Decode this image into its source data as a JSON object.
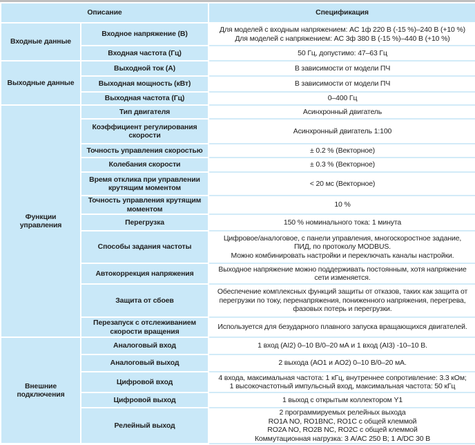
{
  "header": {
    "description": "Описание",
    "specification": "Спецификация"
  },
  "groups": [
    {
      "label": "Входные данные",
      "rows": [
        {
          "param": "Входное напряжение (В)",
          "value": [
            "Для моделей с входным напряжением: AC 1ф 220 В (-15 %)–240 В (+10 %)",
            "Для моделей с напряжением:  AC 3ф 380 В (-15 %)–440 В (+10 %)"
          ]
        },
        {
          "param": "Входная частота (Гц)",
          "value": [
            "50 Гц, допустимо: 47–63 Гц"
          ]
        }
      ]
    },
    {
      "label": "Выходные данные",
      "rows": [
        {
          "param": "Выходной ток (А)",
          "value": [
            "В зависимости от модели ПЧ"
          ]
        },
        {
          "param": "Выходная мощность (кВт)",
          "value": [
            "В зависимости от модели ПЧ"
          ]
        },
        {
          "param": "Выходная частота (Гц)",
          "value": [
            "0–400 Гц"
          ]
        }
      ]
    },
    {
      "label": "Функции управления",
      "rows": [
        {
          "param": "Тип двигателя",
          "value": [
            "Асинхронный двигатель"
          ]
        },
        {
          "param": "Коэффициент регулирования скорости",
          "value": [
            "Асинхронный двигатель 1:100"
          ]
        },
        {
          "param": "Точность управления скоростью",
          "value": [
            "± 0.2 % (Векторное)"
          ]
        },
        {
          "param": "Колебания скорости",
          "value": [
            "± 0.3 % (Векторное)"
          ]
        },
        {
          "param": "Время отклика при управлении крутящим моментом",
          "value": [
            "< 20 мс (Векторное)"
          ]
        },
        {
          "param": "Точность управления крутящим моментом",
          "value": [
            "10 %"
          ]
        },
        {
          "param": "Перегрузка",
          "value": [
            "150 % номинального тока: 1 минута"
          ]
        },
        {
          "param": "Способы задания частоты",
          "value": [
            "Цифровое/аналоговое, с панели управления, многоскоростное задание,",
            "ПИД, по протоколу MODBUS.",
            "Можно комбинировать настройки и переключать каналы настройки."
          ]
        },
        {
          "param": "Автокоррекция напряжения",
          "value": [
            "Выходное напряжение можно поддерживать постоянным, хотя напряжение",
            "сети изменяется."
          ]
        },
        {
          "param": "Защита от сбоев",
          "value": [
            "Обеспечение комплексных функций защиты от отказов, таких как защита от",
            "перегрузки по току, перенапряжения, пониженного напряжения, перегрева,",
            "фазовых потерь и перегрузки."
          ]
        },
        {
          "param": "Перезапуск с отслеживанием скорости вращения",
          "value": [
            "Используется для безударного плавного запуска вращающихся двигателей."
          ]
        }
      ]
    },
    {
      "label": "Внешние подключения",
      "rows": [
        {
          "param": "Аналоговый вход",
          "value": [
            "1 вход (AI2) 0–10 В/0–20 мА и 1 вход (AI3) -10–10 В."
          ]
        },
        {
          "param": "Аналоговый выход",
          "value": [
            "2 выхода (AO1 и AO2) 0–10 В/0–20 мА."
          ]
        },
        {
          "param": "Цифровой вход",
          "value": [
            "4 входа, максимальная частота: 1 кГц, внутреннее сопротивление: 3.3 кОм;",
            "1 высокочастотный импульсный вход, максимальная частота: 50 кГц"
          ]
        },
        {
          "param": "Цифровой выход",
          "value": [
            "1 выход с открытым коллектором Y1"
          ]
        },
        {
          "param": "Релейный выход",
          "value": [
            "2 программируемых релейных выхода",
            "RO1A NO, RO1BNC, RO1C с общей клеммой",
            "RO2A NO, RO2B NC, RO2C с общей клеммой",
            "Коммутационная нагрузка: 3 A/AC 250 В; 1 A/DC 30 В"
          ]
        }
      ]
    }
  ]
}
